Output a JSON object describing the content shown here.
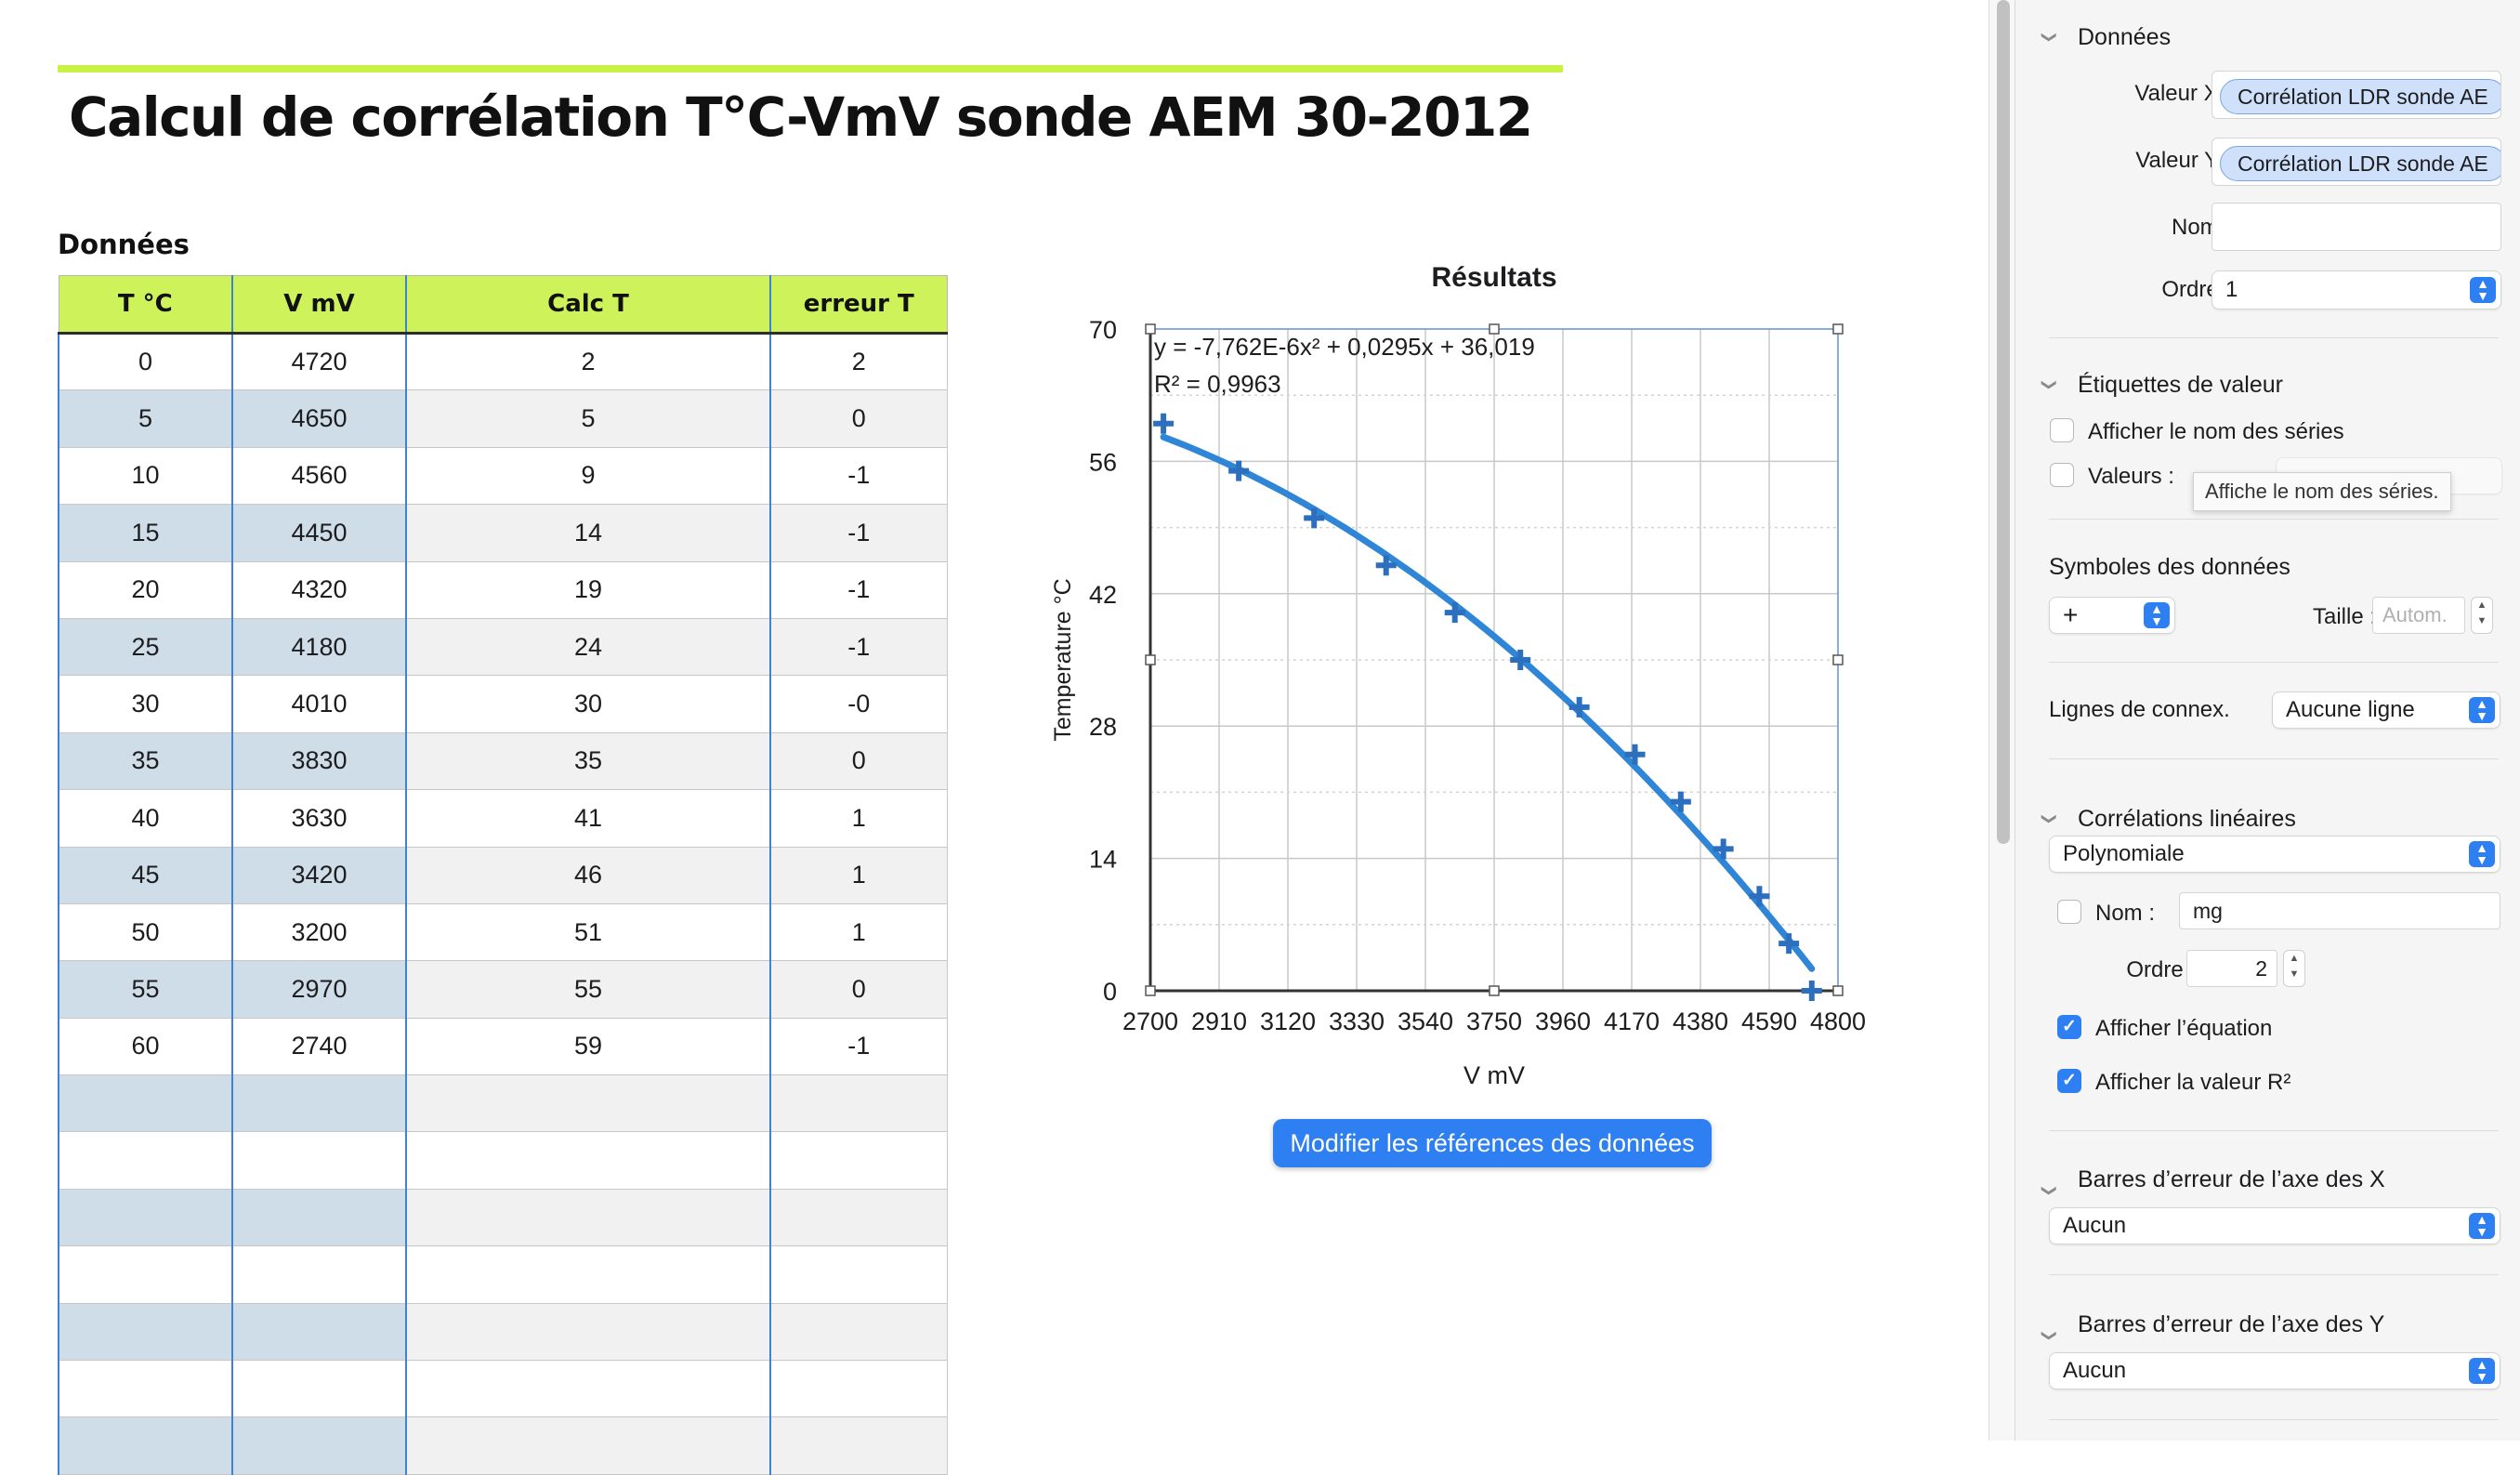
{
  "document": {
    "title": "Calcul de corrélation T°C-VmV sonde AEM 30-2012"
  },
  "table": {
    "title": "Données",
    "headers": [
      "T °C",
      "V mV",
      "Calc T",
      "erreur T"
    ],
    "rows": [
      [
        "0",
        "4720",
        "2",
        "2"
      ],
      [
        "5",
        "4650",
        "5",
        "0"
      ],
      [
        "10",
        "4560",
        "9",
        "-1"
      ],
      [
        "15",
        "4450",
        "14",
        "-1"
      ],
      [
        "20",
        "4320",
        "19",
        "-1"
      ],
      [
        "25",
        "4180",
        "24",
        "-1"
      ],
      [
        "30",
        "4010",
        "30",
        "-0"
      ],
      [
        "35",
        "3830",
        "35",
        "0"
      ],
      [
        "40",
        "3630",
        "41",
        "1"
      ],
      [
        "45",
        "3420",
        "46",
        "1"
      ],
      [
        "50",
        "3200",
        "51",
        "1"
      ],
      [
        "55",
        "2970",
        "55",
        "0"
      ],
      [
        "60",
        "2740",
        "59",
        "-1"
      ]
    ]
  },
  "chart_data": {
    "type": "scatter",
    "title": "Résultats",
    "xlabel": "V mV",
    "ylabel": "Temperature °C",
    "xlim": [
      2700,
      4800
    ],
    "ylim": [
      0,
      70
    ],
    "xticks": [
      2700,
      2910,
      3120,
      3330,
      3540,
      3750,
      3960,
      4170,
      4380,
      4590,
      4800
    ],
    "yticks": [
      0,
      14,
      28,
      42,
      56,
      70
    ],
    "series": [
      {
        "x": [
          4720,
          4650,
          4560,
          4450,
          4320,
          4180,
          4010,
          3830,
          3630,
          3420,
          3200,
          2970,
          2740
        ],
        "y": [
          0,
          5,
          10,
          15,
          20,
          25,
          30,
          35,
          40,
          45,
          50,
          55,
          60
        ]
      }
    ],
    "trendline": {
      "type": "polynomial",
      "order": 2,
      "a": -7.762e-06,
      "b": 0.0295,
      "c": 36.019
    },
    "equation": "y = -7,762E-6x² + 0,0295x + 36,019",
    "r2": "R² = 0,9963",
    "grid": true,
    "marker": "+",
    "color": "#2f86d6"
  },
  "buttons": {
    "edit_refs": "Modifier les références des données"
  },
  "inspector": {
    "data_section": "Données",
    "x_label": "Valeur X :",
    "x_token": "Corrélation LDR sonde AE",
    "y_label": "Valeur Y :",
    "y_token": "Corrélation LDR sonde AE",
    "name_label": "Nom :",
    "order_label": "Ordre :",
    "order_value": "1",
    "value_labels_section": "Étiquettes de valeur",
    "show_series_name": "Afficher le nom des séries",
    "values_label": "Valeurs :",
    "tooltip": "Affiche le nom des séries.",
    "symbols_title": "Symboles des données",
    "symbol_value": "+",
    "size_label": "Taille :",
    "size_placeholder": "Autom.",
    "connect_label": "Lignes de connex.",
    "connect_value": "Aucune ligne",
    "linear_section": "Corrélations linéaires",
    "trend_type": "Polynomiale",
    "trend_name_label": "Nom :",
    "trend_name_value": "mg",
    "trend_order_label": "Ordre :",
    "trend_order_value": "2",
    "show_equation": "Afficher l’équation",
    "show_r2": "Afficher la valeur R²",
    "x_error_section": "Barres d’erreur de l’axe des X",
    "x_error_value": "Aucun",
    "y_error_section": "Barres d’erreur de l’axe des Y",
    "y_error_value": "Aucun"
  }
}
